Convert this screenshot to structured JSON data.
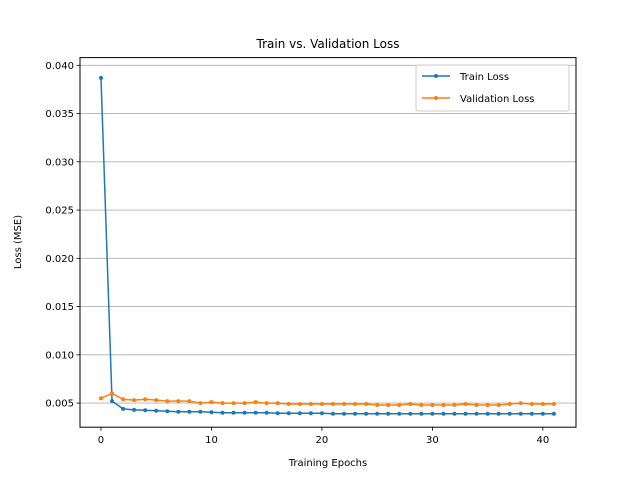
{
  "chart_data": {
    "type": "line",
    "title": "Train vs. Validation Loss",
    "xlabel": "Training Epochs",
    "ylabel": "Loss (MSE)",
    "xlim": [
      -1.9,
      43
    ],
    "ylim": [
      0.0025,
      0.0408
    ],
    "xticks": [
      0,
      10,
      20,
      30,
      40
    ],
    "yticks": [
      0.005,
      0.01,
      0.015,
      0.02,
      0.025,
      0.03,
      0.035,
      0.04
    ],
    "ytick_labels": [
      "0.005",
      "0.010",
      "0.015",
      "0.020",
      "0.025",
      "0.030",
      "0.035",
      "0.040"
    ],
    "grid": "horizontal",
    "legend_position": "top-right",
    "x": [
      0,
      1,
      2,
      3,
      4,
      5,
      6,
      7,
      8,
      9,
      10,
      11,
      12,
      13,
      14,
      15,
      16,
      17,
      18,
      19,
      20,
      21,
      22,
      23,
      24,
      25,
      26,
      27,
      28,
      29,
      30,
      31,
      32,
      33,
      34,
      35,
      36,
      37,
      38,
      39,
      40,
      41
    ],
    "series": [
      {
        "name": "Train Loss",
        "color": "#1f77b4",
        "marker": "dot",
        "values": [
          0.0387,
          0.0052,
          0.0044,
          0.0043,
          0.00425,
          0.0042,
          0.00415,
          0.0041,
          0.0041,
          0.0041,
          0.00405,
          0.004,
          0.004,
          0.004,
          0.004,
          0.004,
          0.00395,
          0.00395,
          0.00395,
          0.00395,
          0.00395,
          0.0039,
          0.0039,
          0.0039,
          0.0039,
          0.0039,
          0.0039,
          0.0039,
          0.0039,
          0.0039,
          0.0039,
          0.0039,
          0.0039,
          0.0039,
          0.0039,
          0.0039,
          0.0039,
          0.0039,
          0.0039,
          0.0039,
          0.0039,
          0.0039
        ]
      },
      {
        "name": "Validation Loss",
        "color": "#ff7f0e",
        "marker": "dot",
        "values": [
          0.0055,
          0.006,
          0.0054,
          0.0053,
          0.0054,
          0.0053,
          0.0052,
          0.0052,
          0.0052,
          0.005,
          0.0051,
          0.005,
          0.005,
          0.005,
          0.0051,
          0.005,
          0.005,
          0.0049,
          0.0049,
          0.0049,
          0.0049,
          0.0049,
          0.0049,
          0.0049,
          0.0049,
          0.0048,
          0.0048,
          0.0048,
          0.0049,
          0.0048,
          0.0048,
          0.0048,
          0.0048,
          0.0049,
          0.0048,
          0.0048,
          0.0048,
          0.0049,
          0.005,
          0.0049,
          0.0049,
          0.0049
        ]
      }
    ]
  }
}
